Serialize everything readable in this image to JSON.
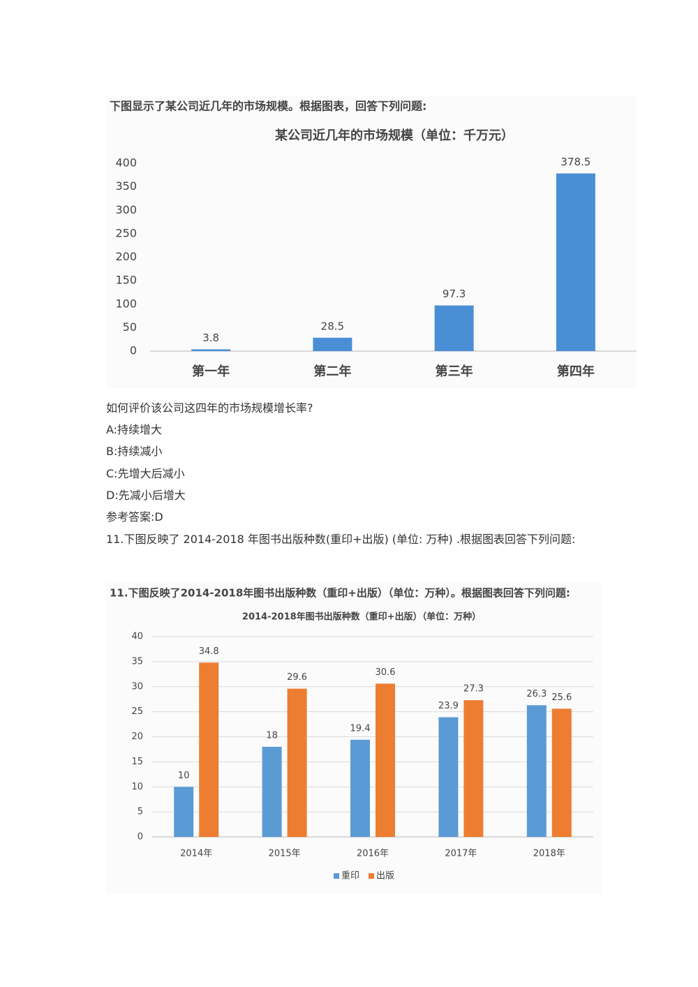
{
  "chart_data": [
    {
      "type": "bar",
      "caption": "下图显示了某公司近几年的市场规模。根据图表，回答下列问题:",
      "title": "某公司近几年的市场规模（单位：千万元）",
      "categories": [
        "第一年",
        "第二年",
        "第三年",
        "第四年"
      ],
      "values": [
        3.8,
        28.5,
        97.3,
        378.5
      ],
      "color": "#4a8fd6",
      "ylim": [
        0,
        400
      ],
      "yticks": [
        0,
        50,
        100,
        150,
        200,
        250,
        300,
        350,
        400
      ],
      "grid": false
    },
    {
      "type": "bar",
      "caption": "11.下图反映了2014-2018年图书出版种数（重印+出版）（单位：万种）。根据图表回答下列问题:",
      "title": "2014-2018年图书出版种数（重印+出版）（单位：万种）",
      "categories": [
        "2014年",
        "2015年",
        "2016年",
        "2017年",
        "2018年"
      ],
      "series": [
        {
          "name": "重印",
          "color": "#5b9bd5",
          "values": [
            10,
            18,
            19.4,
            23.9,
            26.3
          ]
        },
        {
          "name": "出版",
          "color": "#ed7d31",
          "values": [
            34.8,
            29.6,
            30.6,
            27.3,
            25.6
          ]
        }
      ],
      "ylim": [
        0,
        40
      ],
      "yticks": [
        0,
        5,
        10,
        15,
        20,
        25,
        30,
        35,
        40
      ],
      "grid": true,
      "legend": "bottom"
    }
  ],
  "question": {
    "text": "如何评价该公司这四年的市场规模增长率?",
    "options": [
      "A:持续增大",
      "B:持续减小",
      "C:先增大后减小",
      "D:先减小后增大"
    ],
    "answer": "参考答案:D"
  },
  "question2": {
    "text": "11.下图反映了 2014-2018 年图书出版种数(重印+出版) (单位: 万种) .根据图表回答下列问题:"
  }
}
